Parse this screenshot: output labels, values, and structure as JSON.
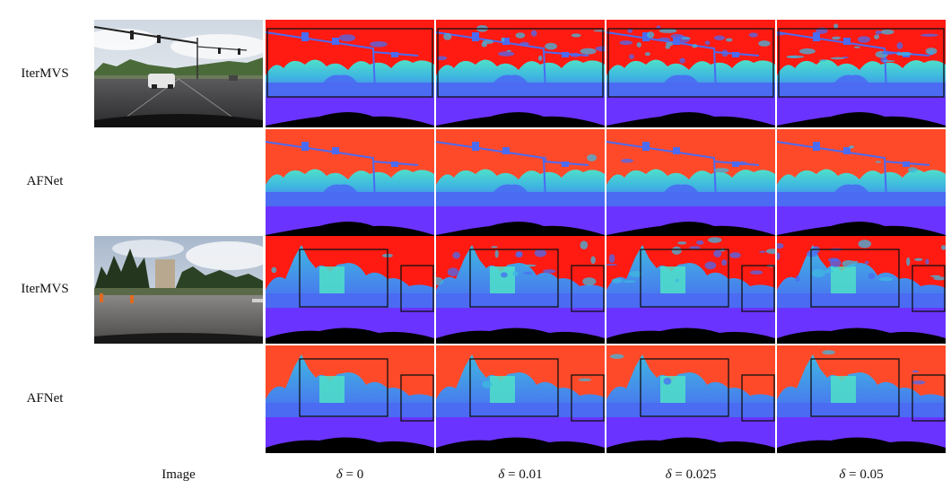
{
  "figure": {
    "rows": [
      {
        "label": "IterMVS"
      },
      {
        "label": "AFNet"
      },
      {
        "label": "IterMVS"
      },
      {
        "label": "AFNet"
      }
    ],
    "columns": [
      {
        "label": "Image"
      },
      {
        "symbol": "δ",
        "value_text": " = 0"
      },
      {
        "symbol": "δ",
        "value_text": " = 0.01"
      },
      {
        "symbol": "δ",
        "value_text": " = 0.025"
      },
      {
        "symbol": "δ",
        "value_text": " = 0.05"
      }
    ]
  },
  "colors": {
    "far_red": "#ff1a12",
    "far_orange": "#ff4a2a",
    "mid_cyan": "#4fe0c8",
    "mid_teal": "#3fb8e0",
    "near_blue": "#4a6bf2",
    "ground_violet": "#6b33ff",
    "hood_black": "#000000",
    "box_stroke": "#111111"
  }
}
